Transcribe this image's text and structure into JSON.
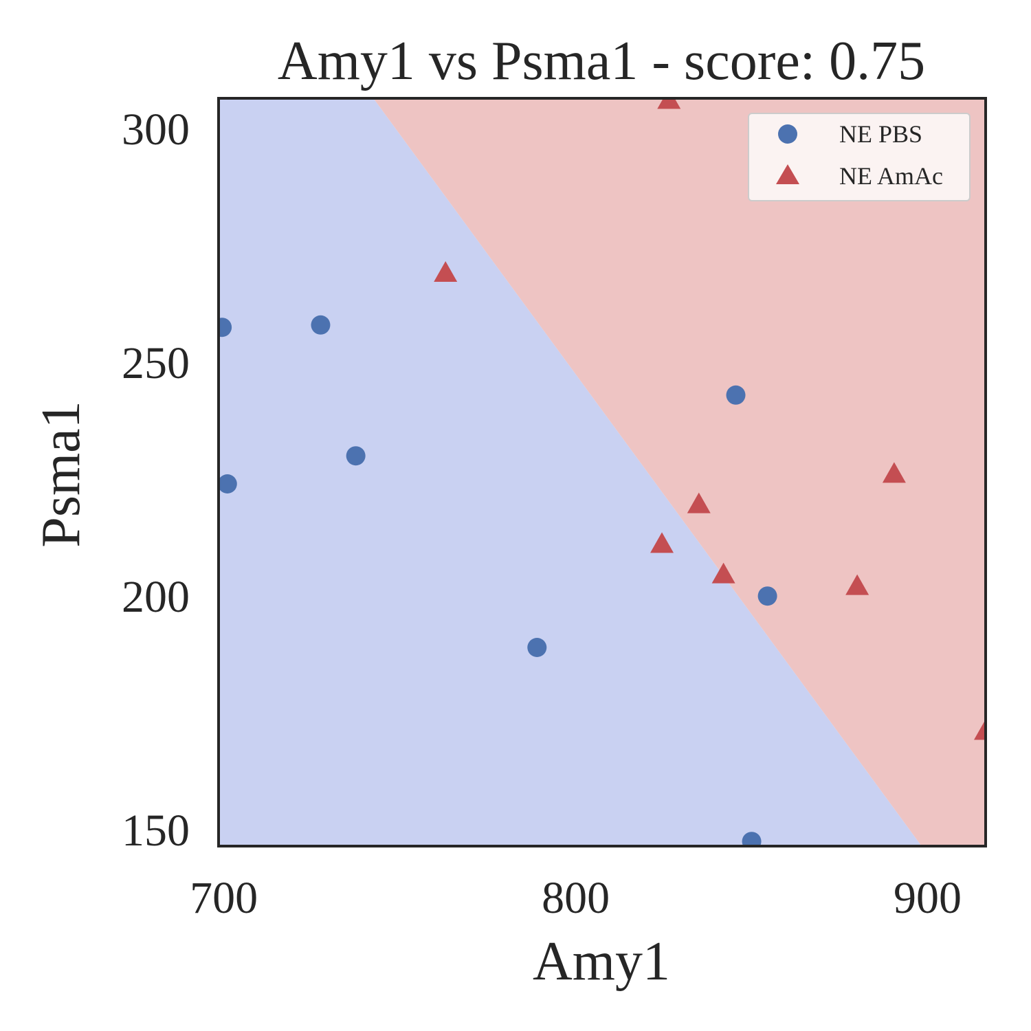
{
  "chart_data": {
    "type": "scatter",
    "title": "Amy1 vs Psma1 - score: 0.75",
    "xlabel": "Amy1",
    "ylabel": "Psma1",
    "xlim": [
      698.5,
      916.5
    ],
    "ylim": [
      146.5,
      306.5
    ],
    "xticks": [
      700,
      800,
      900
    ],
    "xtick_labels": [
      "700",
      "800",
      "900"
    ],
    "yticks": [
      150,
      200,
      250,
      300
    ],
    "ytick_labels": [
      "150",
      "200",
      "250",
      "300"
    ],
    "grid": false,
    "legend_position": "top-right",
    "regions": [
      {
        "class": "NE PBS",
        "color": "#c9d1f2",
        "side": "below-left of boundary"
      },
      {
        "class": "NE AmAc",
        "color": "#eec4c3",
        "side": "above-right of boundary"
      }
    ],
    "boundary": {
      "x_at_top": 742.5,
      "y_top": 306.5,
      "x_at_bottom": 898.3,
      "y_bottom": 146.5
    },
    "series": [
      {
        "name": "NE PBS",
        "marker": "circle",
        "color": "#4c72b0",
        "points": [
          {
            "x": 699.5,
            "y": 257.5
          },
          {
            "x": 701.0,
            "y": 224.0
          },
          {
            "x": 727.5,
            "y": 258.0
          },
          {
            "x": 737.5,
            "y": 230.0
          },
          {
            "x": 789.0,
            "y": 189.0
          },
          {
            "x": 845.5,
            "y": 243.0
          },
          {
            "x": 850.0,
            "y": 147.5
          },
          {
            "x": 854.5,
            "y": 200.0
          }
        ]
      },
      {
        "name": "NE AmAc",
        "marker": "triangle",
        "color": "#c44e52",
        "points": [
          {
            "x": 826.5,
            "y": 306.0
          },
          {
            "x": 763.0,
            "y": 269.0
          },
          {
            "x": 824.5,
            "y": 211.0
          },
          {
            "x": 835.0,
            "y": 219.5
          },
          {
            "x": 842.0,
            "y": 204.5
          },
          {
            "x": 880.0,
            "y": 202.0
          },
          {
            "x": 890.5,
            "y": 226.0
          },
          {
            "x": 916.5,
            "y": 171.0
          }
        ]
      }
    ]
  },
  "colors": {
    "axes_edge": "#262626",
    "text": "#262626",
    "legend_bg": "#fbf3f2",
    "legend_edge": "#cccccc"
  }
}
